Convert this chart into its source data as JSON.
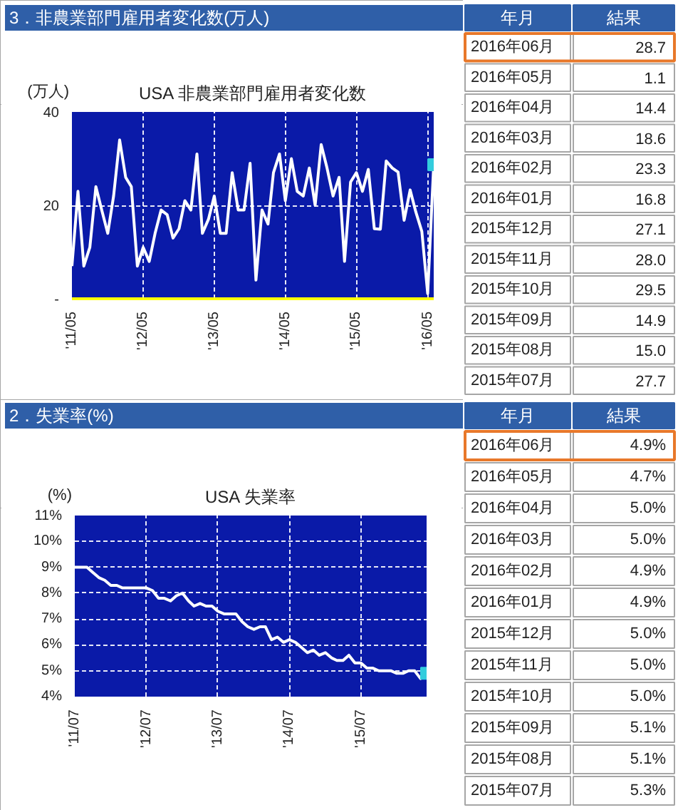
{
  "chart_data": [
    {
      "type": "line",
      "title": "3．非農業部門雇用者変化数(万人)",
      "subtitle": "USA 非農業部門雇用者変化数",
      "ylabel": "(万人)",
      "x": [
        "2011-05",
        "2011-06",
        "2011-07",
        "2011-08",
        "2011-09",
        "2011-10",
        "2011-11",
        "2011-12",
        "2012-01",
        "2012-02",
        "2012-03",
        "2012-04",
        "2012-05",
        "2012-06",
        "2012-07",
        "2012-08",
        "2012-09",
        "2012-10",
        "2012-11",
        "2012-12",
        "2013-01",
        "2013-02",
        "2013-03",
        "2013-04",
        "2013-05",
        "2013-06",
        "2013-07",
        "2013-08",
        "2013-09",
        "2013-10",
        "2013-11",
        "2013-12",
        "2014-01",
        "2014-02",
        "2014-03",
        "2014-04",
        "2014-05",
        "2014-06",
        "2014-07",
        "2014-08",
        "2014-09",
        "2014-10",
        "2014-11",
        "2014-12",
        "2015-01",
        "2015-02",
        "2015-03",
        "2015-04",
        "2015-05",
        "2015-06",
        "2015-07",
        "2015-08",
        "2015-09",
        "2015-10",
        "2015-11",
        "2015-12",
        "2016-01",
        "2016-02",
        "2016-03",
        "2016-04",
        "2016-05",
        "2016-06"
      ],
      "series": [
        {
          "color": "#ffffff",
          "values": [
            7,
            23,
            7,
            11,
            24,
            19,
            14,
            22,
            34,
            26,
            24,
            7,
            11,
            8,
            14,
            19,
            18,
            13,
            15,
            21,
            19,
            31,
            14,
            17,
            22,
            14,
            14,
            27,
            19,
            19,
            29,
            4,
            19,
            16,
            27,
            31,
            21,
            30,
            23,
            22,
            28,
            20,
            33,
            28,
            22,
            26,
            8,
            25,
            27,
            23,
            27.7,
            15.0,
            14.9,
            29.5,
            28.0,
            27.1,
            16.8,
            23.3,
            18.6,
            14.4,
            1.1,
            28.7
          ]
        },
        {
          "type": "scatter",
          "x": [
            "2016-06"
          ],
          "values": [
            28.7
          ],
          "color": "#33ccdd",
          "marker": "square"
        }
      ],
      "xlim": [
        "2011-05",
        "2016-06"
      ],
      "xticks": [
        {
          "value": "2011-05",
          "label": "'11/05"
        },
        {
          "value": "2012-05",
          "label": "'12/05"
        },
        {
          "value": "2013-05",
          "label": "'13/05"
        },
        {
          "value": "2014-05",
          "label": "'14/05"
        },
        {
          "value": "2015-05",
          "label": "'15/05"
        },
        {
          "value": "2016-05",
          "label": "'16/05"
        }
      ],
      "ylim": [
        0,
        40
      ],
      "yticks": [
        {
          "value": 0,
          "label": "-"
        },
        20,
        40
      ],
      "grid": true,
      "line_style": "solid"
    },
    {
      "type": "other",
      "xlabel": "年月",
      "ylabel": "結果",
      "categories": [
        "2016年06月",
        "2016年05月",
        "2016年04月",
        "2016年03月",
        "2016年02月",
        "2016年01月",
        "2015年12月",
        "2015年11月",
        "2015年10月",
        "2015年09月",
        "2015年08月",
        "2015年07月"
      ],
      "values": [
        28.7,
        1.1,
        14.4,
        18.6,
        23.3,
        16.8,
        27.1,
        28.0,
        29.5,
        14.9,
        15.0,
        27.7
      ],
      "value_labels": [
        "28.7",
        "1.1",
        "14.4",
        "18.6",
        "23.3",
        "16.8",
        "27.1",
        "28.0",
        "29.5",
        "14.9",
        "15.0",
        "27.7"
      ]
    },
    {
      "type": "line",
      "title": "2．失業率(%)",
      "subtitle": "USA 失業率",
      "ylabel": "(%)",
      "x": [
        "2011-07",
        "2011-08",
        "2011-09",
        "2011-10",
        "2011-11",
        "2011-12",
        "2012-01",
        "2012-02",
        "2012-03",
        "2012-04",
        "2012-05",
        "2012-06",
        "2012-07",
        "2012-08",
        "2012-09",
        "2012-10",
        "2012-11",
        "2012-12",
        "2013-01",
        "2013-02",
        "2013-03",
        "2013-04",
        "2013-05",
        "2013-06",
        "2013-07",
        "2013-08",
        "2013-09",
        "2013-10",
        "2013-11",
        "2013-12",
        "2014-01",
        "2014-02",
        "2014-03",
        "2014-04",
        "2014-05",
        "2014-06",
        "2014-07",
        "2014-08",
        "2014-09",
        "2014-10",
        "2014-11",
        "2014-12",
        "2015-01",
        "2015-02",
        "2015-03",
        "2015-04",
        "2015-05",
        "2015-06",
        "2015-07",
        "2015-08",
        "2015-09",
        "2015-10",
        "2015-11",
        "2015-12",
        "2016-01",
        "2016-02",
        "2016-03",
        "2016-04",
        "2016-05",
        "2016-06"
      ],
      "series": [
        {
          "color": "#ffffff",
          "values": [
            9.0,
            9.0,
            9.0,
            8.8,
            8.6,
            8.5,
            8.3,
            8.3,
            8.2,
            8.2,
            8.2,
            8.2,
            8.2,
            8.1,
            7.8,
            7.8,
            7.7,
            7.9,
            8.0,
            7.7,
            7.5,
            7.6,
            7.5,
            7.5,
            7.3,
            7.2,
            7.2,
            7.2,
            6.9,
            6.7,
            6.6,
            6.7,
            6.7,
            6.2,
            6.3,
            6.1,
            6.2,
            6.1,
            5.9,
            5.7,
            5.8,
            5.6,
            5.7,
            5.5,
            5.4,
            5.4,
            5.6,
            5.3,
            5.3,
            5.1,
            5.1,
            5.0,
            5.0,
            5.0,
            4.9,
            4.9,
            5.0,
            5.0,
            4.7,
            4.9
          ]
        },
        {
          "type": "scatter",
          "x": [
            "2016-06"
          ],
          "values": [
            4.9
          ],
          "color": "#33ccdd",
          "marker": "square"
        }
      ],
      "xlim": [
        "2011-07",
        "2016-06"
      ],
      "xticks": [
        {
          "value": "2011-07",
          "label": "'11/07"
        },
        {
          "value": "2012-07",
          "label": "'12/07"
        },
        {
          "value": "2013-07",
          "label": "'13/07"
        },
        {
          "value": "2014-07",
          "label": "'14/07"
        },
        {
          "value": "2015-07",
          "label": "'15/07"
        }
      ],
      "ylim": [
        4,
        11
      ],
      "yticks": [
        {
          "value": 4,
          "label": "4%"
        },
        {
          "value": 5,
          "label": "5%"
        },
        {
          "value": 6,
          "label": "6%"
        },
        {
          "value": 7,
          "label": "7%"
        },
        {
          "value": 8,
          "label": "8%"
        },
        {
          "value": 9,
          "label": "9%"
        },
        {
          "value": 10,
          "label": "10%"
        },
        {
          "value": 11,
          "label": "11%"
        }
      ],
      "grid": true,
      "line_style": "solid"
    },
    {
      "type": "other",
      "xlabel": "年月",
      "ylabel": "結果",
      "categories": [
        "2016年06月",
        "2016年05月",
        "2016年04月",
        "2016年03月",
        "2016年02月",
        "2016年01月",
        "2015年12月",
        "2015年11月",
        "2015年10月",
        "2015年09月",
        "2015年08月",
        "2015年07月"
      ],
      "values": [
        4.9,
        4.7,
        5.0,
        5.0,
        4.9,
        4.9,
        5.0,
        5.0,
        5.0,
        5.1,
        5.1,
        5.3
      ],
      "value_labels": [
        "4.9%",
        "4.7%",
        "5.0%",
        "5.0%",
        "4.9%",
        "4.9%",
        "5.0%",
        "5.0%",
        "5.0%",
        "5.1%",
        "5.1%",
        "5.3%"
      ]
    }
  ]
}
